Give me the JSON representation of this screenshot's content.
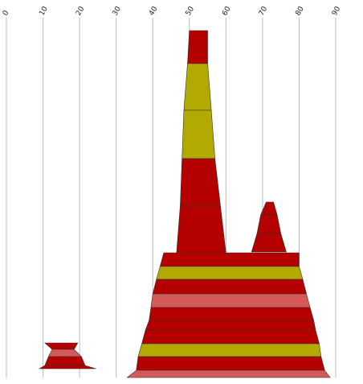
{
  "chart_data": {
    "type": "area",
    "orientation": "vertical",
    "title": "",
    "xlabel": "",
    "ylabel": "",
    "xlim": [
      0,
      90
    ],
    "x_ticks": [
      0,
      10,
      20,
      30,
      40,
      50,
      60,
      70,
      80,
      90
    ],
    "grid": true,
    "legend": "none",
    "colors": {
      "red": "#b50000",
      "olive": "#b2aa00",
      "pink": "#d45a5a",
      "grid": "#bbbbbb",
      "outline": "#333333"
    },
    "groups": [
      {
        "bands": [
          {
            "left_start": 10.5,
            "right_start": 19.5,
            "left_end": 12.5,
            "right_end": 18.5,
            "color": "red"
          },
          {
            "left_start": 12.5,
            "right_start": 18.5,
            "left_end": 11.5,
            "right_end": 20.5,
            "color": "pink"
          },
          {
            "left_start": 11.5,
            "right_start": 20.5,
            "left_end": 10.5,
            "right_end": 21.5,
            "color": "red"
          },
          {
            "left_start": 10.5,
            "right_start": 21.5,
            "left_end": 9,
            "right_end": 24.5,
            "color": "red"
          }
        ]
      },
      {
        "bands": [
          {
            "left_start": 50,
            "right_start": 55,
            "left_end": 49.5,
            "right_end": 55,
            "color": "red"
          },
          {
            "left_start": 49.5,
            "right_start": 55,
            "left_end": 48.5,
            "right_end": 56,
            "color": "olive"
          },
          {
            "left_start": 48.5,
            "right_start": 56,
            "left_end": 48,
            "right_end": 57,
            "color": "olive"
          },
          {
            "left_start": 48,
            "right_start": 57,
            "left_end": 47.5,
            "right_end": 58.5,
            "color": "red"
          },
          {
            "left_start": 47.5,
            "right_start": 58.5,
            "left_end": 46.5,
            "right_end": 60,
            "color": "red"
          }
        ]
      },
      {
        "bands": [
          {
            "left_start": 71,
            "right_start": 73,
            "left_end": 69.5,
            "right_end": 74,
            "color": "red"
          },
          {
            "left_start": 69.5,
            "right_start": 74,
            "left_end": 68.5,
            "right_end": 75,
            "color": "red"
          },
          {
            "left_start": 68.5,
            "right_start": 75,
            "left_end": 67,
            "right_end": 76.5,
            "color": "red"
          }
        ]
      },
      {
        "bands": [
          {
            "left_start": 43,
            "right_start": 80,
            "left_end": 42,
            "right_end": 80,
            "color": "red"
          },
          {
            "left_start": 42,
            "right_start": 80,
            "left_end": 41,
            "right_end": 81,
            "color": "olive"
          },
          {
            "left_start": 41,
            "right_start": 81,
            "left_end": 40,
            "right_end": 82,
            "color": "red"
          },
          {
            "left_start": 40,
            "right_start": 82,
            "left_end": 39.5,
            "right_end": 83,
            "color": "pink"
          },
          {
            "left_start": 39.5,
            "right_start": 83,
            "left_end": 39,
            "right_end": 84,
            "color": "red"
          },
          {
            "left_start": 39,
            "right_start": 84,
            "left_end": 38,
            "right_end": 84.5,
            "color": "red"
          },
          {
            "left_start": 38,
            "right_start": 84.5,
            "left_end": 37,
            "right_end": 85.5,
            "color": "red"
          },
          {
            "left_start": 37,
            "right_start": 85.5,
            "left_end": 36,
            "right_end": 86,
            "color": "olive"
          },
          {
            "left_start": 36,
            "right_start": 86,
            "left_end": 35.5,
            "right_end": 87,
            "color": "red"
          },
          {
            "left_start": 35.5,
            "right_start": 87,
            "left_end": 33,
            "right_end": 88.5,
            "color": "pink"
          }
        ]
      }
    ]
  }
}
